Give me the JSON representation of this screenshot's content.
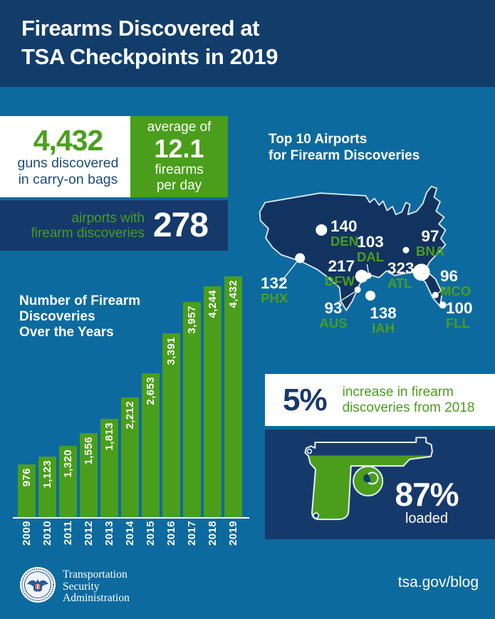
{
  "header": {
    "line1": "Firearms Discovered at",
    "line2": "TSA Checkpoints in 2019"
  },
  "stats": {
    "guns_value": "4,432",
    "guns_label1": "guns discovered",
    "guns_label2": "in carry-on bags",
    "avg_label": "average of",
    "avg_value": "12.1",
    "avg_unit1": "firearms",
    "avg_unit2": "per day",
    "airports_label1": "airports with",
    "airports_label2": "firearm discoveries",
    "airports_value": "278"
  },
  "map_section": {
    "title1": "Top 10 Airports",
    "title2": "for Firearm Discoveries"
  },
  "chart_data": [
    {
      "type": "bar",
      "title": "Number of Firearm Discoveries Over the Years",
      "title_lines": [
        "Number of Firearm",
        "Discoveries",
        "Over the Years"
      ],
      "categories": [
        "2009",
        "2010",
        "2011",
        "2012",
        "2013",
        "2014",
        "2015",
        "2016",
        "2017",
        "2018",
        "2019"
      ],
      "values": [
        976,
        1123,
        1320,
        1556,
        1813,
        2212,
        2653,
        3391,
        3957,
        4244,
        4432
      ],
      "ylim": [
        0,
        4432
      ],
      "grid": false,
      "bar_color": "#4a9e1c",
      "value_label_style": "white, rotated 90deg, inside top of bar"
    },
    {
      "type": "scatter",
      "title": "Top 10 Airports for Firearm Discoveries",
      "marker": "white circle sized by value, on US map",
      "points": [
        {
          "code": "DEN",
          "value": 140
        },
        {
          "code": "PHX",
          "value": 132
        },
        {
          "code": "DFW",
          "value": 217
        },
        {
          "code": "DAL",
          "value": 103
        },
        {
          "code": "AUS",
          "value": 93
        },
        {
          "code": "IAH",
          "value": 138
        },
        {
          "code": "BNA",
          "value": 97
        },
        {
          "code": "ATL",
          "value": 323
        },
        {
          "code": "MCO",
          "value": 96
        },
        {
          "code": "FLL",
          "value": 100
        }
      ]
    }
  ],
  "increase": {
    "value": "5%",
    "label1": "increase in firearm",
    "label2": "discoveries from 2018"
  },
  "loaded": {
    "value": "87%",
    "label": "loaded"
  },
  "footer": {
    "agency1": "Transportation",
    "agency2": "Security",
    "agency3": "Administration",
    "link": "tsa.gov/blog"
  },
  "colors": {
    "header_navy": "#123d6a",
    "background_teal": "#0d6a9e",
    "panel_navy": "#16396b",
    "map_navy": "#12335f",
    "green": "#4a9e1c",
    "white": "#ffffff",
    "navy_text": "#1c4b7a"
  }
}
